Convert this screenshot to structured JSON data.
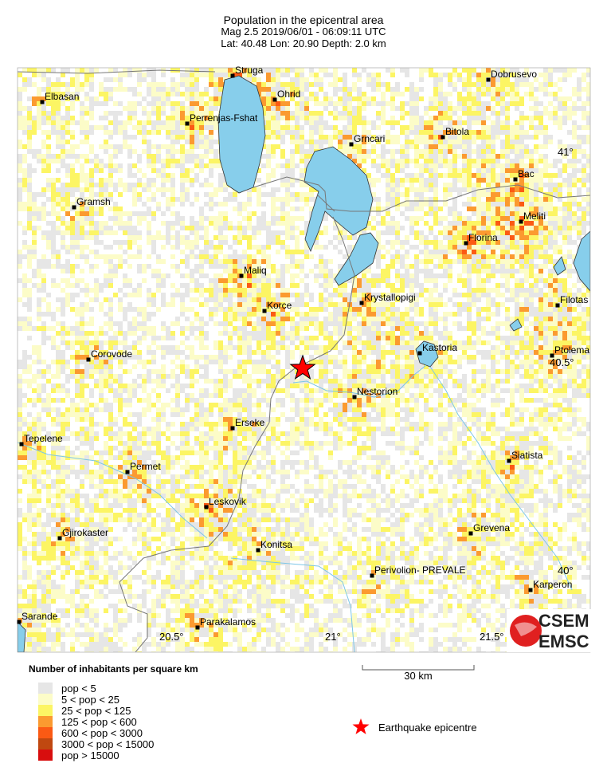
{
  "header": {
    "title": "Population in the epicentral area",
    "line2": "Mag 2.5  2019/06/01 - 06:09:11 UTC",
    "line3": "Lat: 40.48    Lon:  20.90    Depth:  2.0 km"
  },
  "event": {
    "magnitude": 2.5,
    "date": "2019/06/01",
    "time": "06:09:11 UTC",
    "lat": 40.48,
    "lon": 20.9,
    "depth_km": 2.0
  },
  "map": {
    "lon_labels": [
      "20.5°",
      "21°",
      "21.5°"
    ],
    "lat_labels": [
      "41°",
      "40.5°",
      "40°"
    ],
    "towns": [
      {
        "name": "Struga"
      },
      {
        "name": "Ohrid"
      },
      {
        "name": "Dobrusevo"
      },
      {
        "name": "Elbasan"
      },
      {
        "name": "Perrenjas-Fshat"
      },
      {
        "name": "Grncari"
      },
      {
        "name": "Bitola"
      },
      {
        "name": "Bac"
      },
      {
        "name": "Gramsh"
      },
      {
        "name": "Meliti"
      },
      {
        "name": "Florina"
      },
      {
        "name": "Maliq"
      },
      {
        "name": "Krystallopigi"
      },
      {
        "name": "Filotas"
      },
      {
        "name": "Korce"
      },
      {
        "name": "Kastoria"
      },
      {
        "name": "Corovode"
      },
      {
        "name": "Ptolema"
      },
      {
        "name": "Nestorion"
      },
      {
        "name": "Erseke"
      },
      {
        "name": "Tepelene"
      },
      {
        "name": "Siatista"
      },
      {
        "name": "Permet"
      },
      {
        "name": "Leskovik"
      },
      {
        "name": "Grevena"
      },
      {
        "name": "Gjirokaster"
      },
      {
        "name": "Konitsa"
      },
      {
        "name": "Perivolion- PREVALE"
      },
      {
        "name": "Karperon"
      },
      {
        "name": "Sarande"
      },
      {
        "name": "Parakalamos"
      }
    ],
    "scale_label": "30 km",
    "lake_color": "#87ceeb"
  },
  "legend": {
    "title": "Number of inhabitants per square km",
    "classes": [
      {
        "label": "pop < 5",
        "color": "#e6e6e6"
      },
      {
        "label": "5 < pop < 25",
        "color": "#fcfcc8"
      },
      {
        "label": "25 < pop < 125",
        "color": "#fcf564"
      },
      {
        "label": "125 < pop < 600",
        "color": "#fb9a30"
      },
      {
        "label": "600 < pop < 3000",
        "color": "#fb5a14"
      },
      {
        "label": "3000 < pop < 15000",
        "color": "#c04810"
      },
      {
        "label": "pop > 15000",
        "color": "#d80e0e"
      }
    ],
    "epicentre_label": "Earthquake epicentre",
    "epicentre_color": "#ff0000"
  },
  "logo": {
    "top": "CSEM",
    "bottom": "EMSC"
  }
}
